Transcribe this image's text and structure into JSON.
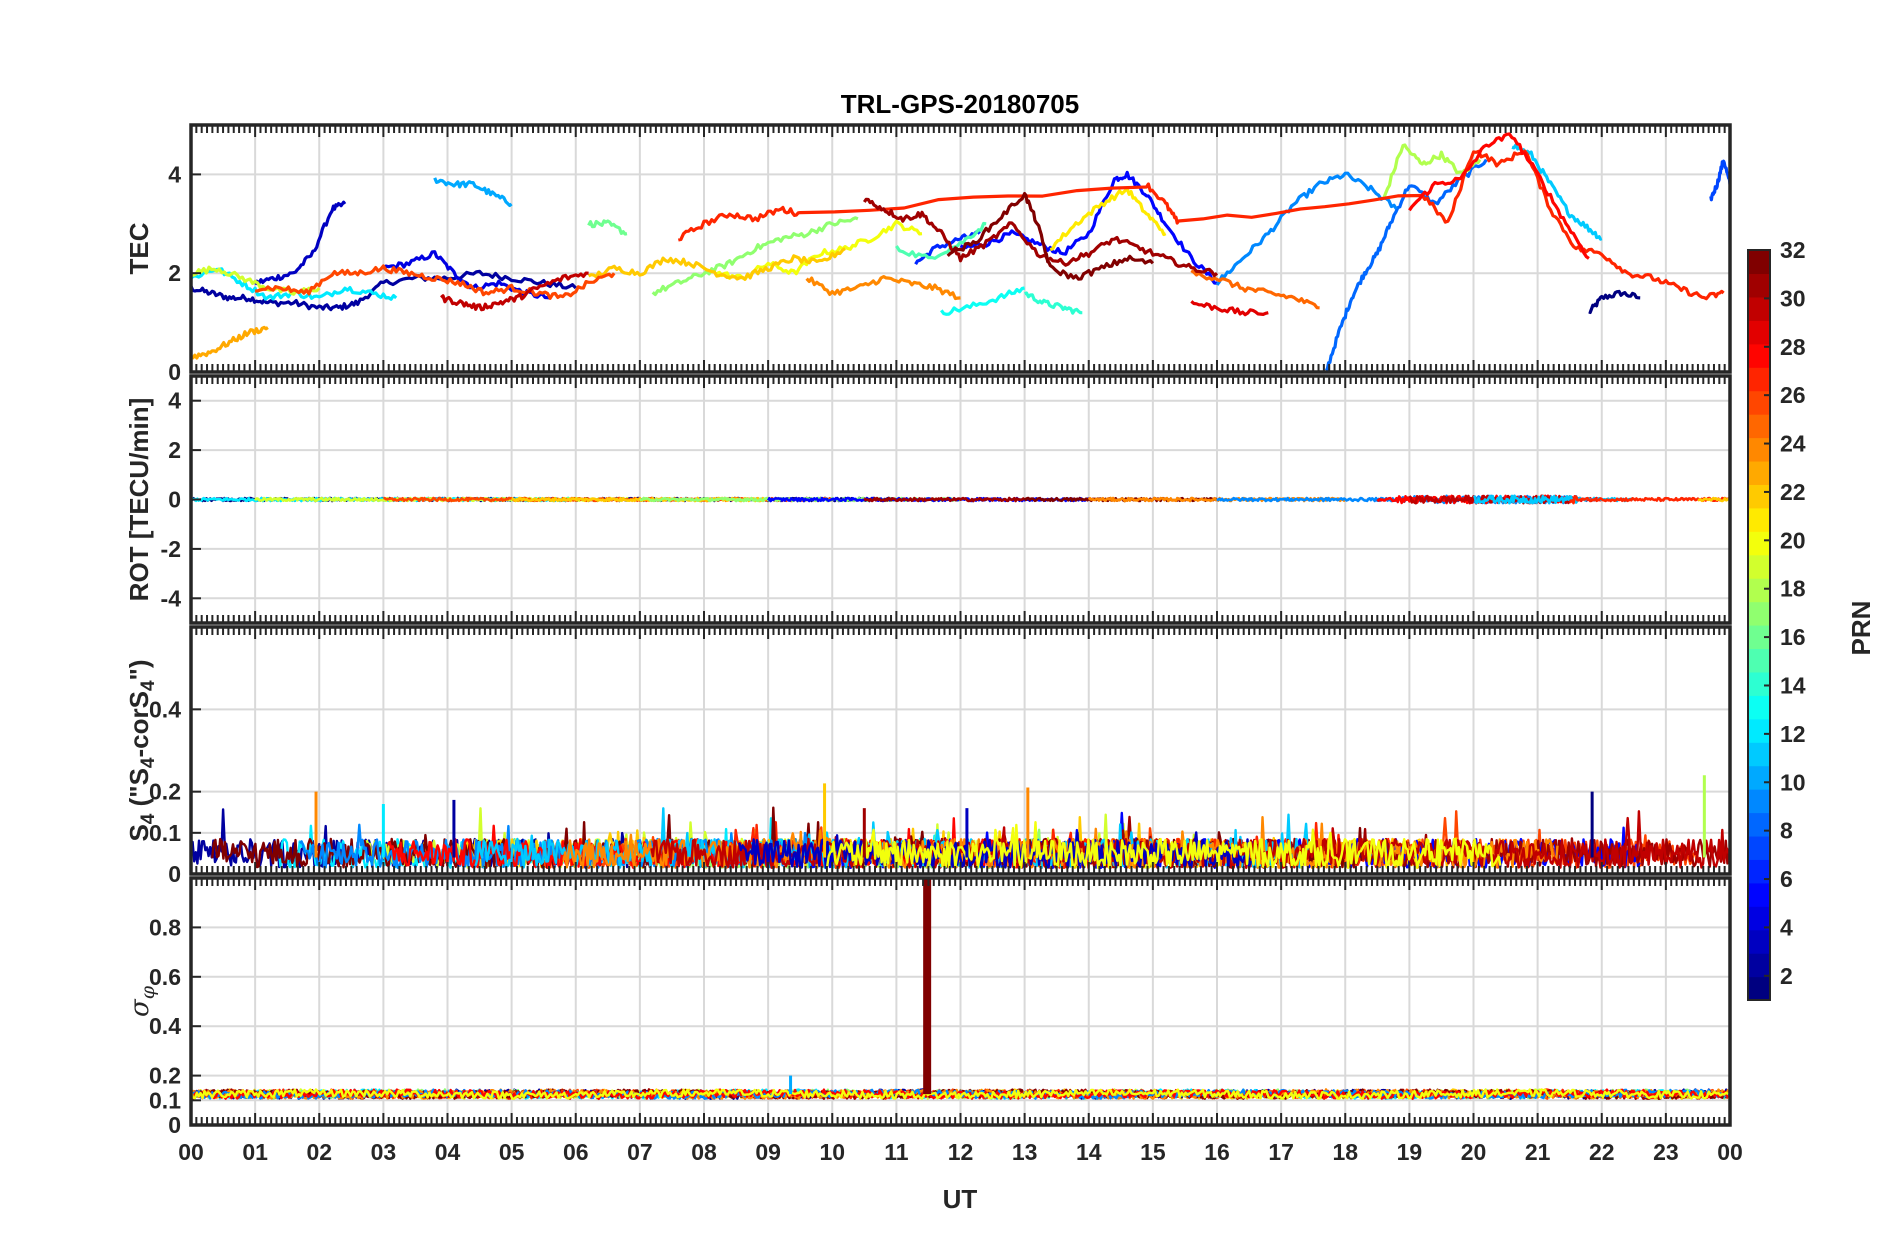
{
  "chart_data": {
    "type": "line",
    "title": "TRL-GPS-20180705",
    "xlabel": "UT",
    "x_ticks": [
      "00",
      "01",
      "02",
      "03",
      "04",
      "05",
      "06",
      "07",
      "08",
      "09",
      "10",
      "11",
      "12",
      "13",
      "14",
      "15",
      "16",
      "17",
      "18",
      "19",
      "20",
      "21",
      "22",
      "23",
      "00"
    ],
    "xlim": [
      0,
      24
    ],
    "colorbar": {
      "label": "PRN",
      "range": [
        1,
        32
      ],
      "ticks": [
        2,
        4,
        6,
        8,
        10,
        12,
        14,
        16,
        18,
        20,
        22,
        24,
        26,
        28,
        30,
        32
      ],
      "colormap": "jet"
    },
    "panels": [
      {
        "name": "tec",
        "ylabel": "TEC",
        "ylim": [
          0,
          5
        ],
        "yticks": [
          0,
          2,
          4
        ],
        "series": [
          {
            "prn": 1,
            "x": [
              21.8,
              22.0,
              22.3,
              22.6
            ],
            "y": [
              1.2,
              1.5,
              1.6,
              1.5
            ]
          },
          {
            "prn": 2,
            "x": [
              0.0,
              0.3,
              0.6,
              0.9,
              1.2,
              1.6,
              2.0,
              2.3,
              2.6,
              3.0,
              3.5,
              4.0,
              4.5,
              5.0,
              5.5,
              6.0
            ],
            "y": [
              1.7,
              1.6,
              1.5,
              1.5,
              1.4,
              1.4,
              1.3,
              1.3,
              1.4,
              1.8,
              1.9,
              1.9,
              2.0,
              1.9,
              1.8,
              1.7
            ]
          },
          {
            "prn": 3,
            "x": [
              1.0,
              1.3,
              1.6,
              1.9,
              2.2,
              2.4
            ],
            "y": [
              1.8,
              1.9,
              2.0,
              2.4,
              3.3,
              3.4
            ]
          },
          {
            "prn": 4,
            "x": [
              3.0,
              3.4,
              3.8,
              4.1,
              4.4,
              4.8,
              5.2,
              5.6
            ],
            "y": [
              2.1,
              2.2,
              2.4,
              2.0,
              1.7,
              1.8,
              1.6,
              1.5
            ]
          },
          {
            "prn": 5,
            "x": [
              12.0,
              12.4,
              12.8,
              13.2,
              13.6,
              14.0,
              14.4,
              14.6,
              14.9,
              15.2,
              15.6,
              16.0
            ],
            "y": [
              2.5,
              2.6,
              2.8,
              2.6,
              2.4,
              2.8,
              3.9,
              4.0,
              3.6,
              3.0,
              2.3,
              1.8
            ]
          },
          {
            "prn": 6,
            "x": [
              11.3,
              11.6,
              12.0,
              12.3
            ],
            "y": [
              2.2,
              2.5,
              2.7,
              2.8
            ]
          },
          {
            "prn": 7,
            "x": [
              23.7,
              23.8,
              23.9,
              24.0
            ],
            "y": [
              3.5,
              3.8,
              4.3,
              3.8
            ]
          },
          {
            "prn": 8,
            "x": [
              17.7,
              17.9,
              18.1,
              18.3,
              18.5,
              18.7,
              19.0,
              19.4,
              19.8,
              20.2
            ],
            "y": [
              0.0,
              0.8,
              1.5,
              2.0,
              2.4,
              3.0,
              3.8,
              3.4,
              3.9,
              4.3
            ]
          },
          {
            "prn": 9,
            "x": [
              16.0,
              16.4,
              16.8,
              17.2,
              17.6,
              18.0,
              18.4,
              18.8
            ],
            "y": [
              1.8,
              2.3,
              2.8,
              3.4,
              3.8,
              4.0,
              3.7,
              3.3
            ]
          },
          {
            "prn": 10,
            "x": [
              3.8,
              4.1,
              4.4,
              4.7,
              5.0
            ],
            "y": [
              3.9,
              3.8,
              3.8,
              3.6,
              3.4
            ]
          },
          {
            "prn": 11,
            "x": [
              20.6,
              20.9,
              21.2,
              21.5,
              21.8,
              22.0
            ],
            "y": [
              4.6,
              4.4,
              3.8,
              3.2,
              2.9,
              2.7
            ]
          },
          {
            "prn": 12,
            "x": [
              0.0,
              0.4,
              0.8,
              1.2,
              1.6,
              2.0,
              2.4,
              2.8,
              3.2
            ],
            "y": [
              1.9,
              2.1,
              1.8,
              1.5,
              1.6,
              1.5,
              1.7,
              1.6,
              1.5
            ]
          },
          {
            "prn": 13,
            "x": [
              11.7,
              12.1,
              12.6,
              13.0
            ],
            "y": [
              1.2,
              1.3,
              1.5,
              1.7
            ]
          },
          {
            "prn": 14,
            "x": [
              13.0,
              13.3,
              13.6,
              13.9
            ],
            "y": [
              1.6,
              1.4,
              1.3,
              1.2
            ]
          },
          {
            "prn": 15,
            "x": [
              11.0,
              11.5,
              12.0,
              12.4
            ],
            "y": [
              2.5,
              2.3,
              2.6,
              3.0
            ]
          },
          {
            "prn": 16,
            "x": [
              6.2,
              6.5,
              6.8
            ],
            "y": [
              3.0,
              3.0,
              2.8
            ]
          },
          {
            "prn": 17,
            "x": [
              7.2,
              7.6,
              8.0,
              8.4,
              8.8,
              9.2,
              9.6,
              10.0,
              10.4
            ],
            "y": [
              1.6,
              1.8,
              2.0,
              2.2,
              2.5,
              2.7,
              2.8,
              3.0,
              3.1
            ]
          },
          {
            "prn": 18,
            "x": [
              18.6,
              18.9,
              19.2,
              19.5,
              19.8,
              20.1
            ],
            "y": [
              3.5,
              4.6,
              4.2,
              4.4,
              4.0,
              4.3
            ]
          },
          {
            "prn": 19,
            "x": [
              0.0,
              0.4,
              0.8,
              1.2,
              1.6,
              2.0
            ],
            "y": [
              2.0,
              2.1,
              1.9,
              1.7,
              1.6,
              1.7
            ]
          },
          {
            "prn": 20,
            "x": [
              8.2,
              8.6,
              9.0,
              9.4,
              9.8,
              10.2,
              10.6,
              11.0,
              11.4
            ],
            "y": [
              2.0,
              1.9,
              2.2,
              2.0,
              2.4,
              2.5,
              2.7,
              3.0,
              2.8
            ]
          },
          {
            "prn": 21,
            "x": [
              13.4,
              13.8,
              14.2,
              14.6,
              14.9,
              15.2
            ],
            "y": [
              2.5,
              3.0,
              3.4,
              3.7,
              3.2,
              2.8
            ]
          },
          {
            "prn": 22,
            "x": [
              6.2,
              6.6,
              7.0,
              7.4,
              7.8,
              8.2,
              8.6,
              9.0,
              9.4,
              9.8,
              10.2
            ],
            "y": [
              1.9,
              2.1,
              2.0,
              2.3,
              2.2,
              2.0,
              1.9,
              2.1,
              2.3,
              2.2,
              2.5
            ]
          },
          {
            "prn": 23,
            "x": [
              0.0,
              0.3,
              0.6,
              0.9,
              1.2
            ],
            "y": [
              0.3,
              0.4,
              0.6,
              0.8,
              0.9
            ]
          },
          {
            "prn": 24,
            "x": [
              9.6,
              10.0,
              10.4,
              10.8,
              11.2,
              11.6,
              12.0
            ],
            "y": [
              1.9,
              1.6,
              1.7,
              1.9,
              1.8,
              1.7,
              1.5
            ]
          },
          {
            "prn": 25,
            "x": [
              15.6,
              16.0,
              16.4,
              16.8,
              17.2,
              17.6
            ],
            "y": [
              2.0,
              1.9,
              1.7,
              1.6,
              1.5,
              1.3
            ]
          },
          {
            "prn": 26,
            "x": [
              1.0,
              1.4,
              1.8,
              2.2,
              2.6,
              3.0,
              3.4,
              3.8,
              4.2,
              4.6,
              5.0,
              5.4,
              5.8,
              6.2,
              6.6
            ],
            "y": [
              1.7,
              1.7,
              1.6,
              2.0,
              2.0,
              2.1,
              2.0,
              1.9,
              1.8,
              1.6,
              1.7,
              1.6,
              1.5,
              1.8,
              2.0
            ]
          },
          {
            "prn": 27,
            "x": [
              7.6,
              8.0,
              8.4,
              8.8,
              9.2,
              9.5,
              14.9,
              15.2,
              15.4,
              19.2,
              19.6,
              20.0,
              20.4,
              20.8,
              21.2,
              21.6,
              22.0,
              22.4,
              22.8,
              23.2,
              23.6,
              23.9
            ],
            "y": [
              2.7,
              3.0,
              3.2,
              3.1,
              3.3,
              3.2,
              3.8,
              3.4,
              3.0,
              3.6,
              3.0,
              4.5,
              4.2,
              4.5,
              3.3,
              2.5,
              2.4,
              2.0,
              1.9,
              1.7,
              1.5,
              1.6
            ]
          },
          {
            "prn": 28,
            "x": [
              19.0,
              19.4,
              19.8,
              20.2,
              20.6,
              21.0,
              21.4,
              21.8
            ],
            "y": [
              3.3,
              3.8,
              3.9,
              4.6,
              4.8,
              4.0,
              3.1,
              2.3
            ]
          },
          {
            "prn": 29,
            "x": [
              15.6,
              16.0,
              16.4,
              16.8
            ],
            "y": [
              1.4,
              1.3,
              1.2,
              1.2
            ]
          },
          {
            "prn": 30,
            "x": [
              3.9,
              4.2,
              4.5,
              4.8,
              5.1,
              5.4,
              5.8,
              6.2
            ],
            "y": [
              1.5,
              1.4,
              1.3,
              1.4,
              1.5,
              1.7,
              1.9,
              2.0
            ]
          },
          {
            "prn": 31,
            "x": [
              10.5,
              10.8,
              11.1,
              11.4,
              11.7,
              12.0,
              12.4,
              12.8,
              13.2,
              13.6,
              14.0,
              14.4,
              14.8,
              15.2,
              15.6,
              16.0
            ],
            "y": [
              3.5,
              3.3,
              3.1,
              3.2,
              2.8,
              2.3,
              2.6,
              3.0,
              2.4,
              2.2,
              2.4,
              2.7,
              2.5,
              2.3,
              2.1,
              2.0
            ]
          },
          {
            "prn": 32,
            "x": [
              11.8,
              12.2,
              12.6,
              13.0,
              13.2,
              13.4,
              13.8,
              14.2,
              14.6,
              15.0
            ],
            "y": [
              2.4,
              2.6,
              3.1,
              3.6,
              3.0,
              2.1,
              1.9,
              2.1,
              2.3,
              2.2
            ]
          }
        ]
      },
      {
        "name": "rot",
        "ylabel": "ROT [TECU/min]",
        "ylim": [
          -5,
          5
        ],
        "yticks": [
          -4,
          -2,
          0,
          2,
          4
        ],
        "noise_amplitude": 0.06
      },
      {
        "name": "s4",
        "ylabel": "S4 (\"S4-corS4\")",
        "ylabel_parts": [
          "S",
          "4",
          " (\"S",
          "4",
          "-corS",
          "4",
          "\")"
        ],
        "ylim": [
          0,
          0.6
        ],
        "yticks": [
          0,
          0.1,
          0.2,
          0.4
        ],
        "baseline_level": 0.05,
        "spikes": [
          {
            "x": 1.95,
            "y": 0.2
          },
          {
            "x": 9.88,
            "y": 0.22
          },
          {
            "x": 13.05,
            "y": 0.21
          },
          {
            "x": 21.85,
            "y": 0.2
          },
          {
            "x": 23.6,
            "y": 0.24
          },
          {
            "x": 4.1,
            "y": 0.18
          },
          {
            "x": 3.0,
            "y": 0.17
          },
          {
            "x": 12.1,
            "y": 0.16
          },
          {
            "x": 10.5,
            "y": 0.16
          }
        ]
      },
      {
        "name": "sigma-phi",
        "ylabel": "σφ",
        "ylabel_parts": [
          "σ",
          "φ"
        ],
        "ylim": [
          0,
          1
        ],
        "yticks": [
          0,
          0.1,
          0.2,
          0.4,
          0.6,
          0.8
        ],
        "baseline_level": 0.125,
        "spikes": [
          {
            "x": 11.48,
            "y": 1.0,
            "prn": 32
          },
          {
            "x": 9.35,
            "y": 0.2,
            "prn": 10
          }
        ]
      }
    ]
  }
}
